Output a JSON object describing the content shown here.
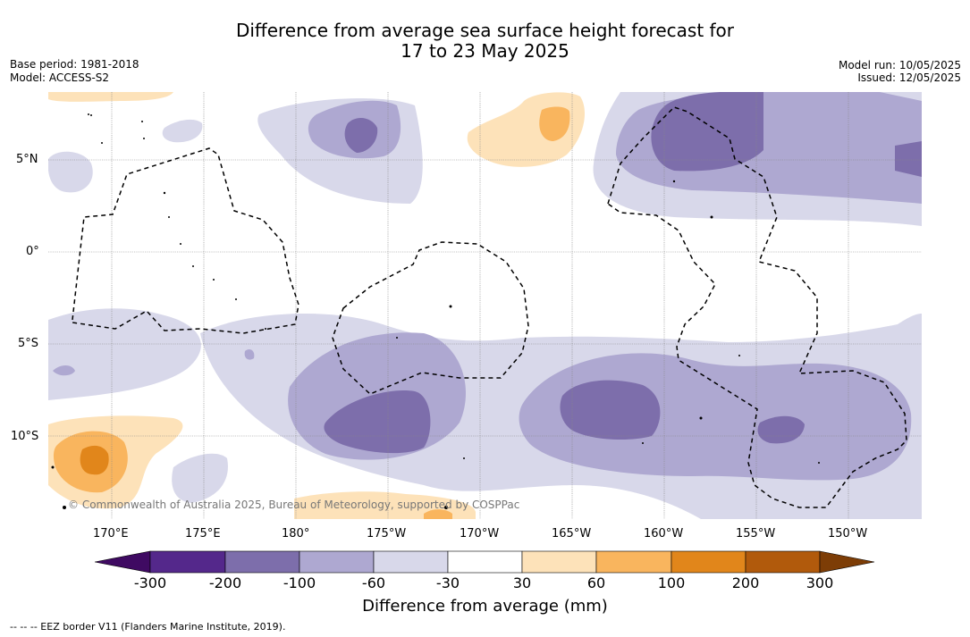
{
  "title": {
    "line1": "Difference from average sea surface height forecast for",
    "line2": "17 to 23 May 2025"
  },
  "meta": {
    "base_period": "Base period: 1981-2018",
    "model": "Model: ACCESS-S2",
    "model_run": "Model run: 10/05/2025",
    "issued": "Issued: 12/05/2025"
  },
  "map": {
    "lat_labels": [
      "5°N",
      "0°",
      "5°S",
      "10°S"
    ],
    "lon_labels": [
      "170°E",
      "175°E",
      "180°",
      "175°W",
      "170°W",
      "165°W",
      "160°W",
      "155°W",
      "150°W"
    ],
    "credit": "© Commonwealth of Australia 2025, Bureau of Meteorology, supported by COSPPac",
    "colors": {
      "neg300": "#3f0a62",
      "neg200": "#54288b",
      "neg100": "#7d6eab",
      "neg60": "#aea8d1",
      "neg30": "#d8d8ea",
      "zero": "#ffffff",
      "pos30": "#fde2b9",
      "pos60": "#f9b55e",
      "pos100": "#e1861b",
      "pos200": "#b15a0c",
      "pos300": "#7d3d06"
    }
  },
  "colorbar": {
    "ticks": [
      "-300",
      "-200",
      "-100",
      "-60",
      "-30",
      "30",
      "60",
      "100",
      "200",
      "300"
    ],
    "label": "Difference from average (mm)"
  },
  "footnote": "--  --  -- EEZ border V11 (Flanders Marine Institute, 2019)."
}
